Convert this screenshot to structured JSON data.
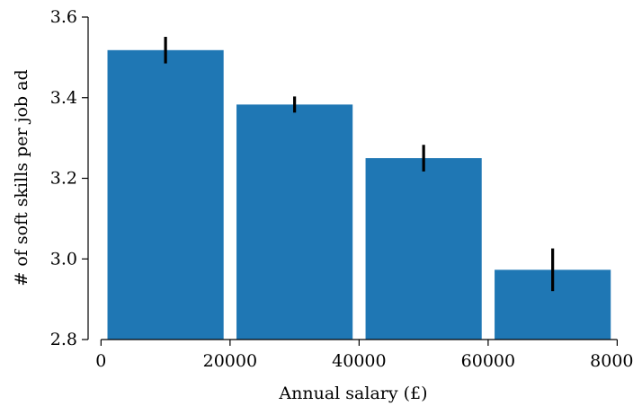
{
  "chart_data": {
    "type": "bar",
    "title": "",
    "xlabel": "Annual salary (£)",
    "ylabel": "# of soft skills per job ad",
    "xlim": [
      -2000,
      80500
    ],
    "ylim": [
      2.8,
      3.6
    ],
    "xticks": [
      0,
      20000,
      40000,
      60000,
      80000
    ],
    "yticks": [
      2.8,
      3.0,
      3.2,
      3.4,
      3.6
    ],
    "ytick_labels": [
      "2.8",
      "3.0",
      "3.2",
      "3.4",
      "3.6"
    ],
    "bar_width": 18000,
    "bars": [
      {
        "x": 10000,
        "value": 3.518,
        "err": 0.033
      },
      {
        "x": 30000,
        "value": 3.383,
        "err": 0.02
      },
      {
        "x": 50000,
        "value": 3.25,
        "err": 0.033
      },
      {
        "x": 70000,
        "value": 2.973,
        "err": 0.053
      }
    ],
    "bar_color": "#1f77b4",
    "error_color": "#000000",
    "grid": false
  }
}
